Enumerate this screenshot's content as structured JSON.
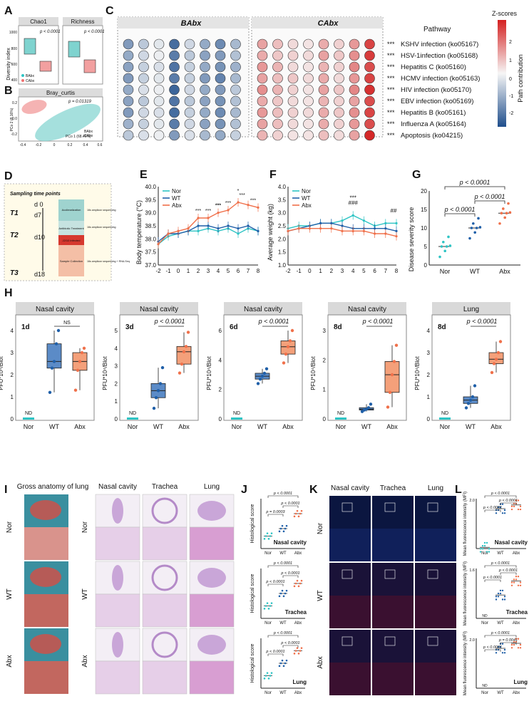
{
  "colors": {
    "nor": "#2ec4c4",
    "wt": "#1f5fa8",
    "abx": "#f0704a",
    "abx_box": "#f4a07a",
    "teal_box": "#7fd3cf",
    "pink_box": "#f2a0a0",
    "scale_red": "#d42020",
    "scale_blue": "#1f4e8c"
  },
  "panels": {
    "a": {
      "label": "A",
      "sub1_title": "Chao1",
      "sub2_title": "Richness",
      "ylabel": "Diversity index",
      "p1": "p < 0.0001",
      "p2": "p < 0.0001",
      "y_ticks": [
        "400",
        "600",
        "800",
        "1000"
      ],
      "legend": [
        "BAbx",
        "CAbx"
      ]
    },
    "b": {
      "label": "B",
      "title": "Bray_curtis",
      "p": "p = 0.01319",
      "xlabel": "PCo 1 (68.46%)",
      "ylabel": "PCo 2 (8.16%)",
      "x_ticks": [
        "-0.4",
        "-0.2",
        "0",
        "0.2",
        "0.4",
        "0.6"
      ],
      "y_ticks": [
        "0.2",
        "0.0",
        "-0.2"
      ],
      "legend": [
        "BAbx",
        "CAbx"
      ]
    },
    "c": {
      "label": "C",
      "group1": "BAbx",
      "group2": "CAbx",
      "pathway_header": "Pathway",
      "scale_title": "Z-scores",
      "scale_ticks": [
        "2",
        "1",
        "0",
        "-1",
        "-2"
      ],
      "scale_label": "Path contribution",
      "pathways": [
        "KSHV infection (ko05167)",
        "HSV-1infection (ko05168)",
        "Hepatitis C (ko05160)",
        "HCMV infection (ko05163)",
        "HIV infection (ko05170)",
        "EBV infection (ko05169)",
        "Hepatitis B (ko05161)",
        "Influenza A (ko05164)",
        "Apoptosis (ko04215)"
      ],
      "sig": "***",
      "zscores_babx": [
        [
          -1.2,
          -0.6,
          -0.2,
          -1.8,
          -0.4,
          -1.0,
          -1.4,
          -0.8
        ],
        [
          -1.0,
          -0.4,
          -0.1,
          -1.6,
          -0.6,
          -1.1,
          -1.2,
          -0.7
        ],
        [
          -1.1,
          -0.5,
          -0.3,
          -1.7,
          -0.5,
          -1.0,
          -1.3,
          -0.9
        ],
        [
          -1.2,
          -0.5,
          -0.2,
          -1.6,
          -0.5,
          -1.2,
          -1.5,
          -0.8
        ],
        [
          -1.0,
          -0.3,
          -0.1,
          -1.9,
          -0.4,
          -1.0,
          -1.2,
          -0.6
        ],
        [
          -1.1,
          -0.6,
          -0.2,
          -1.7,
          -0.6,
          -1.1,
          -1.3,
          -0.7
        ],
        [
          -1.2,
          -0.4,
          -0.3,
          -1.8,
          -0.5,
          -1.0,
          -1.4,
          -0.8
        ],
        [
          -0.9,
          -0.5,
          -0.2,
          -1.6,
          -0.4,
          -1.1,
          -1.3,
          -0.7
        ],
        [
          -0.6,
          -0.3,
          -0.1,
          -1.2,
          -0.3,
          -0.8,
          -1.0,
          -0.5
        ]
      ],
      "zscores_cabx": [
        [
          0.9,
          0.6,
          0.3,
          0.2,
          0.8,
          0.4,
          1.0,
          1.9
        ],
        [
          0.8,
          0.5,
          0.4,
          0.3,
          0.9,
          0.5,
          1.1,
          2.0
        ],
        [
          1.0,
          0.7,
          0.3,
          0.2,
          0.7,
          0.4,
          1.2,
          1.8
        ],
        [
          0.9,
          0.6,
          0.5,
          0.3,
          0.8,
          0.3,
          1.0,
          1.9
        ],
        [
          1.1,
          0.7,
          0.4,
          0.2,
          0.9,
          0.5,
          1.2,
          2.1
        ],
        [
          0.8,
          0.5,
          0.3,
          0.2,
          0.7,
          0.4,
          0.9,
          1.8
        ],
        [
          1.0,
          0.6,
          0.4,
          0.3,
          0.8,
          0.5,
          1.1,
          1.9
        ],
        [
          0.9,
          0.6,
          0.3,
          0.2,
          0.8,
          0.4,
          1.0,
          1.8
        ],
        [
          0.7,
          0.4,
          0.2,
          0.2,
          0.6,
          0.3,
          0.9,
          2.2
        ]
      ]
    },
    "d": {
      "label": "D",
      "heading": "Sampling time points",
      "points": [
        "T1",
        "T2",
        "T3"
      ],
      "days": [
        "d 0",
        "d7",
        "d10",
        "d18"
      ],
      "stages": [
        "Acclimatization",
        "Antibiotic Treatment",
        "J2/10 infected",
        "Sample Collection"
      ],
      "notes": [
        "16s amplicon sequencing",
        "16s amplicon sequencing",
        "16s amplicon sequencing + RNA-Seq"
      ]
    },
    "e": {
      "label": "E",
      "ylabel": "Body temperature (°C)",
      "legend": [
        "Nor",
        "WT",
        "Abx"
      ],
      "x": [
        -2,
        -1,
        0,
        1,
        2,
        3,
        4,
        5,
        6,
        7,
        8
      ],
      "x_ticks": [
        "-2",
        "-1",
        "0",
        "1",
        "2",
        "3",
        "4",
        "5",
        "6",
        "7",
        "8"
      ],
      "y_ticks": [
        "37.0",
        "37.5",
        "38.0",
        "38.5",
        "39.0",
        "39.5",
        "40.0"
      ],
      "ylim": [
        37.0,
        40.0
      ],
      "series": [
        {
          "name": "Nor",
          "values": [
            37.8,
            38.1,
            38.2,
            38.3,
            38.3,
            38.4,
            38.3,
            38.4,
            38.2,
            38.4,
            38.3
          ]
        },
        {
          "name": "WT",
          "values": [
            37.9,
            38.2,
            38.2,
            38.3,
            38.5,
            38.5,
            38.4,
            38.5,
            38.4,
            38.5,
            38.3
          ]
        },
        {
          "name": "Abx",
          "values": [
            37.8,
            38.2,
            38.3,
            38.4,
            38.8,
            38.8,
            39.0,
            39.1,
            39.4,
            39.3,
            39.2
          ]
        }
      ],
      "sig": [
        "***",
        "***",
        "***",
        "***",
        "***",
        "*",
        "***",
        "***"
      ]
    },
    "f": {
      "label": "F",
      "ylabel": "Average weight (kg)",
      "legend": [
        "Nor",
        "WT",
        "Abx"
      ],
      "x": [
        -2,
        -1,
        0,
        1,
        2,
        3,
        4,
        5,
        6,
        7,
        8
      ],
      "x_ticks": [
        "-2",
        "-1",
        "0",
        "1",
        "2",
        "3",
        "4",
        "5",
        "6",
        "7",
        "8"
      ],
      "y_ticks": [
        "1.0",
        "1.5",
        "2.0",
        "2.5",
        "3.0",
        "3.5",
        "4.0"
      ],
      "ylim": [
        1.0,
        4.0
      ],
      "series": [
        {
          "name": "Nor",
          "values": [
            2.4,
            2.5,
            2.5,
            2.6,
            2.6,
            2.7,
            2.9,
            2.7,
            2.5,
            2.6,
            2.6
          ]
        },
        {
          "name": "WT",
          "values": [
            2.3,
            2.4,
            2.5,
            2.6,
            2.6,
            2.5,
            2.4,
            2.4,
            2.4,
            2.4,
            2.3
          ]
        },
        {
          "name": "Abx",
          "values": [
            2.3,
            2.4,
            2.4,
            2.4,
            2.4,
            2.3,
            2.3,
            2.3,
            2.2,
            2.2,
            2.1
          ]
        }
      ],
      "sig": [
        "***",
        "###",
        "##"
      ]
    },
    "g": {
      "label": "G",
      "ylabel": "Disease severity score",
      "categories": [
        "Nor",
        "WT",
        "Abx"
      ],
      "y_ticks": [
        "0",
        "5",
        "10",
        "15",
        "20"
      ],
      "p_labels": [
        "p < 0.0001",
        "p < 0.0001",
        "p < 0.0001"
      ],
      "medians": [
        5,
        10,
        14
      ]
    },
    "h": {
      "label": "H",
      "ylabel": "PFU*10⁴/Blot",
      "categories": [
        "Nor",
        "WT",
        "Abx"
      ],
      "nd": "ND",
      "ns": "NS",
      "plots": [
        {
          "title": "Nasal cavity",
          "day": "1d",
          "p": "",
          "ymax": 4,
          "y_ticks": [
            "0",
            "1",
            "2",
            "3",
            "4"
          ],
          "wt": [
            1.2,
            2.3,
            2.6,
            3.4,
            4.0
          ],
          "abx": [
            1.3,
            2.2,
            2.6,
            3.0,
            3.2
          ]
        },
        {
          "title": "Nasal cavity",
          "day": "3d",
          "p": "p < 0.0001",
          "ymax": 5,
          "y_ticks": [
            "0",
            "1",
            "2",
            "3",
            "4",
            "5"
          ],
          "wt": [
            0.6,
            1.2,
            1.6,
            2.0,
            2.9
          ],
          "abx": [
            2.6,
            3.1,
            3.8,
            4.1,
            4.9
          ]
        },
        {
          "title": "Nasal cavity",
          "day": "6d",
          "p": "p < 0.0001",
          "ymax": 6,
          "y_ticks": [
            "0",
            "2",
            "4",
            "6"
          ],
          "wt": [
            2.4,
            2.7,
            2.9,
            3.1,
            3.4
          ],
          "abx": [
            3.8,
            4.4,
            4.9,
            5.3,
            6.0
          ]
        },
        {
          "title": "Nasal cavity",
          "day": "8d",
          "p": "p < 0.0001",
          "ymax": 3,
          "y_ticks": [
            "0",
            "1",
            "2",
            "3"
          ],
          "wt": [
            0.25,
            0.3,
            0.33,
            0.38,
            0.5
          ],
          "abx": [
            0.4,
            0.9,
            1.5,
            1.95,
            2.5
          ]
        },
        {
          "title": "Lung",
          "day": "8d",
          "p": "p < 0.0001",
          "ymax": 4,
          "y_ticks": [
            "0",
            "1",
            "2",
            "3",
            "4"
          ],
          "wt": [
            0.5,
            0.7,
            0.85,
            1.0,
            1.5
          ],
          "abx": [
            2.1,
            2.5,
            2.7,
            3.0,
            3.5
          ]
        }
      ]
    },
    "i": {
      "label": "I",
      "gross_title": "Gross anatomy of lung",
      "tissues": [
        "Nasal cavity",
        "Trachea",
        "Lung"
      ],
      "groups": [
        "Nor",
        "WT",
        "Abx"
      ]
    },
    "j": {
      "label": "J",
      "ylabel": "Histological score",
      "categories": [
        "Nor",
        "WT",
        "Abx"
      ],
      "plots": [
        {
          "tissue": "Nasal cavity",
          "p": [
            "p < 0.0001",
            "p = 0.0003",
            "p < 0.0001"
          ],
          "medians": [
            5,
            8,
            14
          ]
        },
        {
          "tissue": "Trachea",
          "p": [
            "p < 0.0001",
            "p < 0.0001",
            "p < 0.0001"
          ],
          "medians": [
            5,
            10,
            14
          ]
        },
        {
          "tissue": "Lung",
          "p": [
            "p < 0.0001",
            "p < 0.0001",
            "p < 0.0001"
          ],
          "medians": [
            5,
            10,
            15
          ]
        }
      ]
    },
    "k": {
      "label": "K",
      "tissues": [
        "Nasal cavity",
        "Trachea",
        "Lung"
      ],
      "groups": [
        "Nor",
        "WT",
        "Abx"
      ]
    },
    "l": {
      "label": "L",
      "ylabel": "Mean fluorescence intensity (MFI)",
      "categories": [
        "Nor",
        "WT",
        "Abx"
      ],
      "nd": "ND",
      "plots": [
        {
          "tissue": "Nasal cavity",
          "ymax": "2.0",
          "p": [
            "p < 0.0001",
            "p < 0.0001",
            "p < 0.0001"
          ]
        },
        {
          "tissue": "Trachea",
          "ymax": "1.6",
          "p": [
            "p < 0.0001",
            "p < 0.0001",
            "p < 0.0001"
          ]
        },
        {
          "tissue": "Lung",
          "ymax": "2.0",
          "p": [
            "p < 0.0001",
            "p < 0.0001",
            "p = 0.0041"
          ]
        }
      ]
    }
  }
}
